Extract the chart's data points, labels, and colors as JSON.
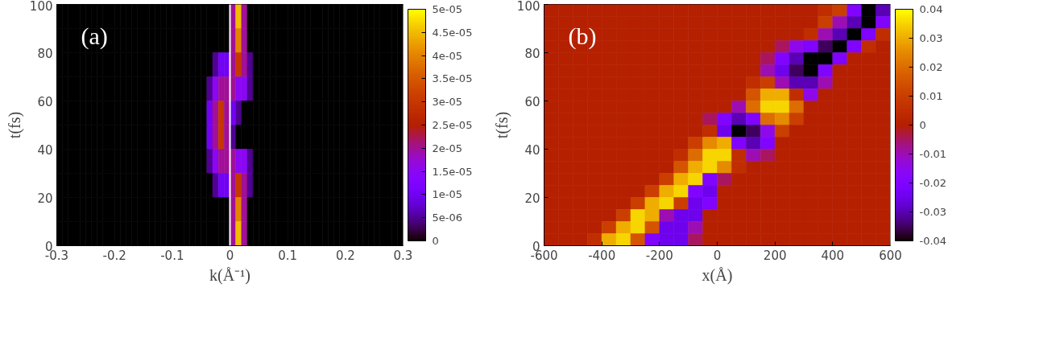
{
  "chart_data": [
    {
      "type": "heatmap",
      "xlabel": "k(Å⁻¹)",
      "ylabel": "t(fs)",
      "annotations": [
        "(a)"
      ],
      "xlim": [
        -0.3,
        0.3
      ],
      "ylim": [
        0,
        100
      ],
      "xticks": [
        -0.3,
        -0.2,
        -0.1,
        0,
        0.1,
        0.2,
        0.3
      ],
      "yticks": [
        0,
        20,
        40,
        60,
        80,
        100
      ],
      "clim": [
        0,
        5e-05
      ],
      "cticks": [
        {
          "value": 0,
          "label": "0"
        },
        {
          "value": 5e-06,
          "label": "5e-06"
        },
        {
          "value": 1e-05,
          "label": "1e-05"
        },
        {
          "value": 1.5e-05,
          "label": "1.5e-05"
        },
        {
          "value": 2e-05,
          "label": "2e-05"
        },
        {
          "value": 2.5e-05,
          "label": "2.5e-05"
        },
        {
          "value": 3e-05,
          "label": "3e-05"
        },
        {
          "value": 3.5e-05,
          "label": "3.5e-05"
        },
        {
          "value": 4e-05,
          "label": "4e-05"
        },
        {
          "value": 4.5e-05,
          "label": "4.5e-05"
        },
        {
          "value": 5e-05,
          "label": "5e-05"
        }
      ],
      "ref_lines": [
        {
          "axis": "x",
          "value": 0,
          "color": "#ffffff"
        }
      ],
      "x": [
        -0.295,
        -0.285,
        -0.275,
        -0.265,
        -0.255,
        -0.245,
        -0.235,
        -0.225,
        -0.215,
        -0.205,
        -0.195,
        -0.185,
        -0.175,
        -0.165,
        -0.155,
        -0.145,
        -0.135,
        -0.125,
        -0.115,
        -0.105,
        -0.095,
        -0.085,
        -0.075,
        -0.065,
        -0.055,
        -0.045,
        -0.035,
        -0.025,
        -0.015,
        -0.005,
        0.005,
        0.015,
        0.025,
        0.035,
        0.045,
        0.055,
        0.065,
        0.075,
        0.085,
        0.095,
        0.105,
        0.115,
        0.125,
        0.135,
        0.145,
        0.155,
        0.165,
        0.175,
        0.185,
        0.195,
        0.205,
        0.215,
        0.225,
        0.235,
        0.245,
        0.255,
        0.265,
        0.275,
        0.285,
        0.295
      ],
      "y": [
        95,
        85,
        75,
        65,
        55,
        45,
        35,
        25,
        15,
        5
      ],
      "cells": [
        [
          0,
          0,
          0,
          0,
          0,
          0,
          0,
          0,
          0,
          0,
          0,
          0,
          0,
          0,
          0,
          0,
          0,
          0,
          0,
          0,
          0,
          0,
          0,
          0,
          0,
          0,
          0,
          0,
          0,
          0,
          2e-05,
          4.5e-05,
          2e-05,
          0,
          0,
          0,
          0,
          0,
          0,
          0,
          0,
          0,
          0,
          0,
          0,
          0,
          0,
          0,
          0,
          0,
          0,
          0,
          0,
          0,
          0,
          0,
          0,
          0,
          0,
          0
        ],
        [
          0,
          0,
          0,
          0,
          0,
          0,
          0,
          0,
          0,
          0,
          0,
          0,
          0,
          0,
          0,
          0,
          0,
          0,
          0,
          0,
          0,
          0,
          0,
          0,
          0,
          0,
          0,
          0,
          0,
          0,
          2e-05,
          4e-05,
          2e-05,
          0,
          0,
          0,
          0,
          0,
          0,
          0,
          0,
          0,
          0,
          0,
          0,
          0,
          0,
          0,
          0,
          0,
          0,
          0,
          0,
          0,
          0,
          0,
          0,
          0,
          0,
          0
        ],
        [
          0,
          0,
          0,
          0,
          0,
          0,
          0,
          0,
          0,
          0,
          0,
          0,
          0,
          0,
          0,
          0,
          0,
          0,
          0,
          0,
          0,
          0,
          0,
          0,
          0,
          0,
          0,
          5e-06,
          1e-05,
          1e-05,
          2e-05,
          3e-05,
          2e-05,
          5e-06,
          0,
          0,
          0,
          0,
          0,
          0,
          0,
          0,
          0,
          0,
          0,
          0,
          0,
          0,
          0,
          0,
          0,
          0,
          0,
          0,
          0,
          0,
          0,
          0,
          0,
          0
        ],
        [
          0,
          0,
          0,
          0,
          0,
          0,
          0,
          0,
          0,
          0,
          0,
          0,
          0,
          0,
          0,
          0,
          0,
          0,
          0,
          0,
          0,
          0,
          0,
          0,
          0,
          0,
          5e-06,
          1.5e-05,
          2e-05,
          2e-05,
          2e-05,
          1.5e-05,
          1.5e-05,
          5e-06,
          0,
          0,
          0,
          0,
          0,
          0,
          0,
          0,
          0,
          0,
          0,
          0,
          0,
          0,
          0,
          0,
          0,
          0,
          0,
          0,
          0,
          0,
          0,
          0,
          0,
          0
        ],
        [
          0,
          0,
          0,
          0,
          0,
          0,
          0,
          0,
          0,
          0,
          0,
          0,
          0,
          0,
          0,
          0,
          0,
          0,
          0,
          0,
          0,
          0,
          0,
          0,
          0,
          0,
          1e-05,
          2e-05,
          3e-05,
          2e-05,
          1e-05,
          5e-06,
          0,
          0,
          0,
          0,
          0,
          0,
          0,
          0,
          0,
          0,
          0,
          0,
          0,
          0,
          0,
          0,
          0,
          0,
          0,
          0,
          0,
          0,
          0,
          0,
          0,
          0,
          0,
          0
        ],
        [
          0,
          0,
          0,
          0,
          0,
          0,
          0,
          0,
          0,
          0,
          0,
          0,
          0,
          0,
          0,
          0,
          0,
          0,
          0,
          0,
          0,
          0,
          0,
          0,
          0,
          0,
          1e-05,
          2e-05,
          3e-05,
          2e-05,
          5e-06,
          0,
          0,
          0,
          0,
          0,
          0,
          0,
          0,
          0,
          0,
          0,
          0,
          0,
          0,
          0,
          0,
          0,
          0,
          0,
          0,
          0,
          0,
          0,
          0,
          0,
          0,
          0,
          0,
          0
        ],
        [
          0,
          0,
          0,
          0,
          0,
          0,
          0,
          0,
          0,
          0,
          0,
          0,
          0,
          0,
          0,
          0,
          0,
          0,
          0,
          0,
          0,
          0,
          0,
          0,
          0,
          0,
          5e-06,
          1.5e-05,
          2e-05,
          2e-05,
          2e-05,
          1.5e-05,
          1.5e-05,
          5e-06,
          0,
          0,
          0,
          0,
          0,
          0,
          0,
          0,
          0,
          0,
          0,
          0,
          0,
          0,
          0,
          0,
          0,
          0,
          0,
          0,
          0,
          0,
          0,
          0,
          0,
          0
        ],
        [
          0,
          0,
          0,
          0,
          0,
          0,
          0,
          0,
          0,
          0,
          0,
          0,
          0,
          0,
          0,
          0,
          0,
          0,
          0,
          0,
          0,
          0,
          0,
          0,
          0,
          0,
          0,
          5e-06,
          1e-05,
          1e-05,
          2e-05,
          3e-05,
          2e-05,
          5e-06,
          0,
          0,
          0,
          0,
          0,
          0,
          0,
          0,
          0,
          0,
          0,
          0,
          0,
          0,
          0,
          0,
          0,
          0,
          0,
          0,
          0,
          0,
          0,
          0,
          0,
          0
        ],
        [
          0,
          0,
          0,
          0,
          0,
          0,
          0,
          0,
          0,
          0,
          0,
          0,
          0,
          0,
          0,
          0,
          0,
          0,
          0,
          0,
          0,
          0,
          0,
          0,
          0,
          0,
          0,
          0,
          0,
          0,
          2e-05,
          4e-05,
          2e-05,
          0,
          0,
          0,
          0,
          0,
          0,
          0,
          0,
          0,
          0,
          0,
          0,
          0,
          0,
          0,
          0,
          0,
          0,
          0,
          0,
          0,
          0,
          0,
          0,
          0,
          0,
          0
        ],
        [
          0,
          0,
          0,
          0,
          0,
          0,
          0,
          0,
          0,
          0,
          0,
          0,
          0,
          0,
          0,
          0,
          0,
          0,
          0,
          0,
          0,
          0,
          0,
          0,
          0,
          0,
          0,
          0,
          0,
          0,
          2e-05,
          4.5e-05,
          2e-05,
          0,
          0,
          0,
          0,
          0,
          0,
          0,
          0,
          0,
          0,
          0,
          0,
          0,
          0,
          0,
          0,
          0,
          0,
          0,
          0,
          0,
          0,
          0,
          0,
          0,
          0,
          0
        ]
      ]
    },
    {
      "type": "heatmap",
      "xlabel": "x(Å)",
      "ylabel": "t(fs)",
      "annotations": [
        "(b)"
      ],
      "xlim": [
        -600,
        600
      ],
      "ylim": [
        0,
        100
      ],
      "xticks": [
        -600,
        -400,
        -200,
        0,
        200,
        400,
        600
      ],
      "yticks": [
        0,
        20,
        40,
        60,
        80,
        100
      ],
      "clim": [
        -0.04,
        0.04
      ],
      "cticks": [
        -0.04,
        -0.03,
        -0.02,
        -0.01,
        0,
        0.01,
        0.02,
        0.03,
        0.04
      ],
      "x": [
        -575,
        -525,
        -475,
        -425,
        -375,
        -325,
        -275,
        -225,
        -175,
        -125,
        -75,
        -25,
        25,
        75,
        125,
        175,
        225,
        275,
        325,
        375,
        425,
        475,
        525,
        575
      ],
      "y": [
        97.5,
        92.5,
        87.5,
        82.5,
        77.5,
        72.5,
        67.5,
        62.5,
        57.5,
        52.5,
        47.5,
        42.5,
        37.5,
        32.5,
        27.5,
        22.5,
        17.5,
        12.5,
        7.5,
        2.5
      ],
      "cells": [
        [
          0,
          0,
          0,
          0,
          0,
          0,
          0,
          0,
          0,
          0,
          0,
          0,
          0,
          0,
          0,
          0,
          0,
          0,
          0,
          0.005,
          0.01,
          -0.02,
          -0.04,
          -0.03
        ],
        [
          0,
          0,
          0,
          0,
          0,
          0,
          0,
          0,
          0,
          0,
          0,
          0,
          0,
          0,
          0,
          0,
          0,
          0,
          0,
          0.01,
          -0.01,
          -0.03,
          -0.04,
          -0.02
        ],
        [
          0,
          0,
          0,
          0,
          0,
          0,
          0,
          0,
          0,
          0,
          0,
          0,
          0,
          0,
          0,
          0,
          0,
          0,
          0.005,
          -0.01,
          -0.03,
          -0.04,
          -0.02,
          0.005
        ],
        [
          0,
          0,
          0,
          0,
          0,
          0,
          0,
          0,
          0,
          0,
          0,
          0,
          0,
          0,
          0,
          0,
          -0.005,
          -0.015,
          -0.02,
          -0.035,
          -0.04,
          -0.02,
          0.005,
          0
        ],
        [
          0,
          0,
          0,
          0,
          0,
          0,
          0,
          0,
          0,
          0,
          0,
          0,
          0,
          0,
          0,
          -0.005,
          -0.02,
          -0.03,
          -0.04,
          -0.04,
          -0.02,
          0,
          0,
          0
        ],
        [
          0,
          0,
          0,
          0,
          0,
          0,
          0,
          0,
          0,
          0,
          0,
          0,
          0,
          0,
          0,
          -0.01,
          -0.025,
          -0.035,
          -0.04,
          -0.02,
          0,
          0,
          0,
          0
        ],
        [
          0,
          0,
          0,
          0,
          0,
          0,
          0,
          0,
          0,
          0,
          0,
          0,
          0,
          0,
          0.005,
          0.01,
          -0.01,
          -0.03,
          -0.03,
          -0.01,
          0,
          0,
          0,
          0
        ],
        [
          0,
          0,
          0,
          0,
          0,
          0,
          0,
          0,
          0,
          0,
          0,
          0,
          0,
          0,
          0.015,
          0.03,
          0.03,
          0.005,
          -0.015,
          0,
          0,
          0,
          0,
          0
        ],
        [
          0,
          0,
          0,
          0,
          0,
          0,
          0,
          0,
          0,
          0,
          0,
          0,
          0,
          -0.01,
          0.02,
          0.035,
          0.035,
          0.02,
          0,
          0,
          0,
          0,
          0,
          0
        ],
        [
          0,
          0,
          0,
          0,
          0,
          0,
          0,
          0,
          0,
          0,
          0,
          -0.005,
          -0.02,
          -0.03,
          -0.02,
          0.02,
          0.025,
          0.01,
          0,
          0,
          0,
          0,
          0,
          0
        ],
        [
          0,
          0,
          0,
          0,
          0,
          0,
          0,
          0,
          0,
          0,
          0,
          0.005,
          -0.025,
          -0.04,
          -0.035,
          -0.015,
          0.01,
          0,
          0,
          0,
          0,
          0,
          0,
          0
        ],
        [
          0,
          0,
          0,
          0,
          0,
          0,
          0,
          0,
          0,
          0,
          0.01,
          0.025,
          0.03,
          -0.02,
          -0.03,
          -0.02,
          0,
          0,
          0,
          0,
          0,
          0,
          0,
          0
        ],
        [
          0,
          0,
          0,
          0,
          0,
          0,
          0,
          0,
          0,
          0.005,
          0.02,
          0.035,
          0.035,
          0.005,
          -0.01,
          -0.005,
          0,
          0,
          0,
          0,
          0,
          0,
          0,
          0
        ],
        [
          0,
          0,
          0,
          0,
          0,
          0,
          0,
          0,
          0,
          0.015,
          0.03,
          0.035,
          0.025,
          0.005,
          0,
          0,
          0,
          0,
          0,
          0,
          0,
          0,
          0,
          0
        ],
        [
          0,
          0,
          0,
          0,
          0,
          0,
          0,
          0,
          0.01,
          0.03,
          0.035,
          -0.02,
          -0.005,
          0,
          0,
          0,
          0,
          0,
          0,
          0,
          0,
          0,
          0,
          0
        ],
        [
          0,
          0,
          0,
          0,
          0,
          0,
          0,
          0.01,
          0.03,
          0.035,
          -0.02,
          -0.025,
          0,
          0,
          0,
          0,
          0,
          0,
          0,
          0,
          0,
          0,
          0,
          0
        ],
        [
          0,
          0,
          0,
          0,
          0,
          0,
          0.01,
          0.03,
          0.035,
          0.01,
          -0.025,
          -0.02,
          0,
          0,
          0,
          0,
          0,
          0,
          0,
          0,
          0,
          0,
          0,
          0
        ],
        [
          0,
          0,
          0,
          0,
          0,
          0.01,
          0.035,
          0.03,
          -0.01,
          -0.025,
          -0.025,
          0,
          0,
          0,
          0,
          0,
          0,
          0,
          0,
          0,
          0,
          0,
          0,
          0
        ],
        [
          0,
          0,
          0,
          0,
          0.01,
          0.03,
          0.035,
          0.015,
          -0.025,
          -0.025,
          -0.01,
          0,
          0,
          0,
          0,
          0,
          0,
          0,
          0,
          0,
          0,
          0,
          0,
          0
        ],
        [
          0,
          0,
          0,
          0.005,
          0.03,
          0.035,
          0.015,
          -0.02,
          -0.025,
          -0.025,
          -0.005,
          0,
          0,
          0,
          0,
          0,
          0,
          0,
          0,
          0,
          0,
          0,
          0,
          0
        ]
      ]
    }
  ]
}
